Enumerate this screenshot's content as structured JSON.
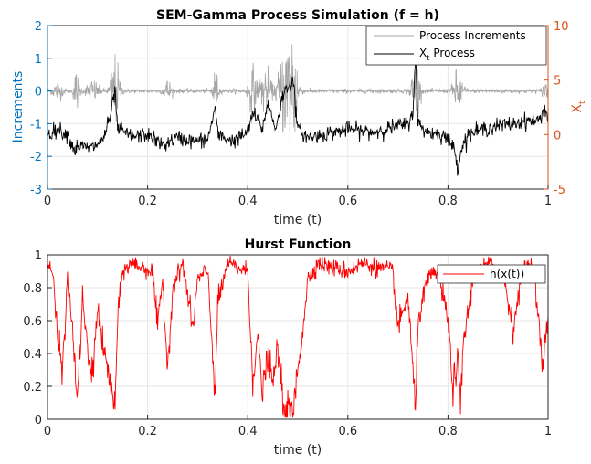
{
  "chart_data": [
    {
      "type": "line",
      "title": "SEM-Gamma Process Simulation (f = h)",
      "xlabel": "time (t)",
      "ylabel_left": "Increments",
      "ylabel_right": "X",
      "ylabel_right_sub": "t",
      "xlim": [
        0,
        1
      ],
      "ylim_left": [
        -3,
        2
      ],
      "ylim_right": [
        -5,
        10
      ],
      "xticks": [
        0,
        0.2,
        0.4,
        0.6,
        0.8,
        1
      ],
      "xtick_labels": [
        "0",
        "0.2",
        "0.4",
        "0.6",
        "0.8",
        "1"
      ],
      "yticks_left": [
        -3,
        -2,
        -1,
        0,
        1,
        2
      ],
      "ytick_labels_left": [
        "-3",
        "-2",
        "-1",
        "0",
        "1",
        "2"
      ],
      "yticks_right": [
        -5,
        0,
        5,
        10
      ],
      "ytick_labels_right": [
        "-5",
        "0",
        "5",
        "10"
      ],
      "grid": true,
      "legend_position": "top-right",
      "left_axis_color": "#0072BD",
      "right_axis_color": "#D95319",
      "series": [
        {
          "name": "Process Increments",
          "axis": "left",
          "color": "#a6a6a6",
          "bursts": [
            {
              "t": 0.02,
              "amp": 0.25,
              "width": 0.01
            },
            {
              "t": 0.058,
              "amp": 0.55,
              "width": 0.006
            },
            {
              "t": 0.09,
              "amp": 0.3,
              "width": 0.012
            },
            {
              "t": 0.135,
              "amp": 1.0,
              "width": 0.009
            },
            {
              "t": 0.24,
              "amp": 0.3,
              "width": 0.008
            },
            {
              "t": 0.335,
              "amp": 0.55,
              "width": 0.006
            },
            {
              "t": 0.41,
              "amp": 0.65,
              "width": 0.009
            },
            {
              "t": 0.435,
              "amp": 0.75,
              "width": 0.01
            },
            {
              "t": 0.475,
              "amp": 1.2,
              "width": 0.015
            },
            {
              "t": 0.49,
              "amp": 1.6,
              "width": 0.01
            },
            {
              "t": 0.735,
              "amp": 0.9,
              "width": 0.008
            },
            {
              "t": 0.82,
              "amp": 0.6,
              "width": 0.01
            },
            {
              "t": 0.995,
              "amp": 0.3,
              "width": 0.006
            }
          ]
        },
        {
          "name": "X",
          "name_sub": "t",
          "name_suffix": "Process",
          "axis": "right",
          "color": "#000000",
          "x": [
            0,
            0.02,
            0.04,
            0.055,
            0.06,
            0.075,
            0.09,
            0.11,
            0.125,
            0.135,
            0.14,
            0.17,
            0.2,
            0.23,
            0.26,
            0.29,
            0.32,
            0.335,
            0.34,
            0.37,
            0.4,
            0.41,
            0.43,
            0.44,
            0.455,
            0.47,
            0.48,
            0.49,
            0.5,
            0.52,
            0.55,
            0.6,
            0.65,
            0.7,
            0.72,
            0.73,
            0.735,
            0.74,
            0.76,
            0.79,
            0.81,
            0.82,
            0.825,
            0.84,
            0.87,
            0.9,
            0.93,
            0.96,
            0.98,
            0.995,
            1
          ],
          "y": [
            0,
            0.5,
            0,
            -1.5,
            -1,
            -1.2,
            -1.2,
            -0.5,
            1.5,
            4,
            0.5,
            -0.2,
            0,
            -1,
            -0.3,
            -0.6,
            -0.5,
            2.5,
            0,
            -0.6,
            0.2,
            2,
            0.5,
            3,
            0.5,
            3.5,
            4.5,
            5,
            0.5,
            -0.3,
            0,
            0.5,
            0.2,
            0.8,
            1,
            2,
            7.5,
            1,
            0.2,
            0,
            -1,
            -3,
            -1.5,
            0,
            0.5,
            0.8,
            1,
            1.3,
            1.2,
            2.5,
            1
          ]
        }
      ]
    },
    {
      "type": "line",
      "title": "Hurst Function",
      "xlabel": "time (t)",
      "xlim": [
        0,
        1
      ],
      "ylim": [
        0,
        1
      ],
      "xticks": [
        0,
        0.2,
        0.4,
        0.6,
        0.8,
        1
      ],
      "xtick_labels": [
        "0",
        "0.2",
        "0.4",
        "0.6",
        "0.8",
        "1"
      ],
      "yticks": [
        0,
        0.2,
        0.4,
        0.6,
        0.8,
        1
      ],
      "ytick_labels": [
        "0",
        "0.2",
        "0.4",
        "0.6",
        "0.8",
        "1"
      ],
      "grid": true,
      "legend_position": "top-right",
      "series": [
        {
          "name": "h(x(t))",
          "color": "#ff0000",
          "x": [
            0,
            0.01,
            0.02,
            0.03,
            0.04,
            0.05,
            0.06,
            0.07,
            0.08,
            0.09,
            0.1,
            0.11,
            0.12,
            0.13,
            0.135,
            0.14,
            0.15,
            0.17,
            0.19,
            0.21,
            0.22,
            0.23,
            0.24,
            0.25,
            0.27,
            0.29,
            0.3,
            0.32,
            0.335,
            0.34,
            0.36,
            0.38,
            0.4,
            0.41,
            0.42,
            0.43,
            0.44,
            0.45,
            0.46,
            0.47,
            0.48,
            0.49,
            0.5,
            0.51,
            0.52,
            0.54,
            0.57,
            0.6,
            0.63,
            0.66,
            0.69,
            0.7,
            0.72,
            0.73,
            0.735,
            0.74,
            0.76,
            0.78,
            0.8,
            0.81,
            0.82,
            0.825,
            0.83,
            0.85,
            0.88,
            0.91,
            0.93,
            0.95,
            0.97,
            0.99,
            1
          ],
          "y": [
            0.95,
            0.9,
            0.5,
            0.3,
            0.85,
            0.55,
            0.1,
            0.75,
            0.4,
            0.25,
            0.7,
            0.45,
            0.3,
            0.15,
            0.05,
            0.6,
            0.9,
            0.95,
            0.92,
            0.9,
            0.55,
            0.85,
            0.3,
            0.8,
            0.95,
            0.55,
            0.85,
            0.9,
            0.15,
            0.7,
            0.95,
            0.92,
            0.9,
            0.25,
            0.5,
            0.15,
            0.4,
            0.2,
            0.45,
            0.1,
            0.05,
            0.02,
            0.3,
            0.55,
            0.85,
            0.95,
            0.92,
            0.9,
            0.95,
            0.92,
            0.9,
            0.55,
            0.75,
            0.3,
            0.02,
            0.6,
            0.85,
            0.9,
            0.6,
            0.2,
            0.35,
            0.05,
            0.45,
            0.85,
            0.95,
            0.9,
            0.55,
            0.92,
            0.95,
            0.3,
            0.65
          ]
        }
      ]
    }
  ]
}
